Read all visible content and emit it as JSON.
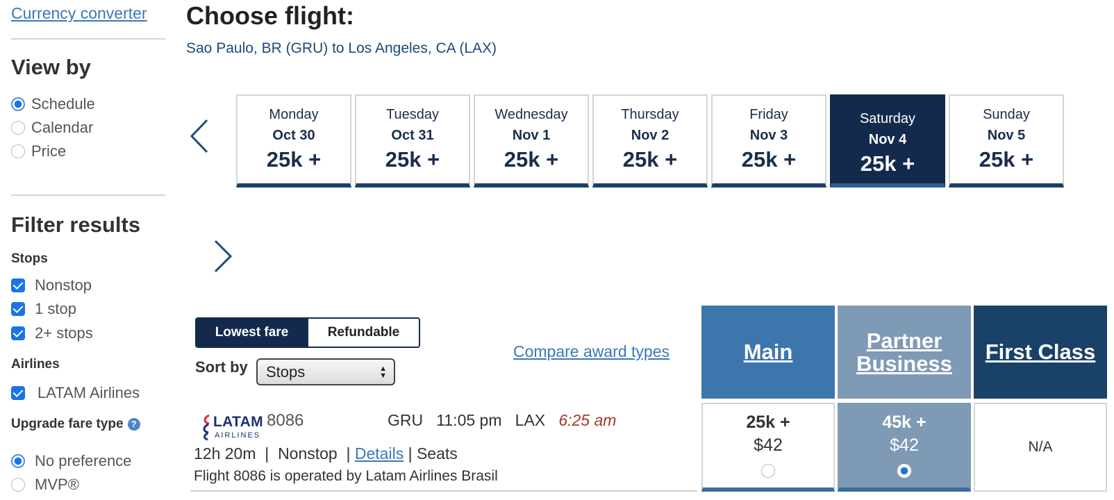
{
  "sidebar": {
    "currency_link": "Currency converter",
    "view_by": {
      "title": "View by",
      "options": [
        {
          "label": "Schedule",
          "selected": true
        },
        {
          "label": "Calendar",
          "selected": false
        },
        {
          "label": "Price",
          "selected": false
        }
      ]
    },
    "filter": {
      "title": "Filter results",
      "stops_title": "Stops",
      "stops": [
        {
          "label": "Nonstop",
          "checked": true
        },
        {
          "label": "1 stop",
          "checked": true
        },
        {
          "label": "2+ stops",
          "checked": true
        }
      ],
      "airlines_title": "Airlines",
      "airlines": [
        {
          "label": "LATAM Airlines",
          "checked": true
        }
      ],
      "upgrade_title": "Upgrade fare type",
      "upgrade_help": "?",
      "upgrade_options": [
        {
          "label": "No preference",
          "selected": true
        },
        {
          "label": "MVP®",
          "selected": false
        }
      ]
    }
  },
  "main": {
    "title": "Choose flight:",
    "route": "Sao Paulo, BR (GRU) to Los Angeles, CA (LAX)",
    "days": [
      {
        "day": "Monday",
        "date": "Oct 30",
        "price": "25k +",
        "selected": false
      },
      {
        "day": "Tuesday",
        "date": "Oct 31",
        "price": "25k +",
        "selected": false
      },
      {
        "day": "Wednesday",
        "date": "Nov 1",
        "price": "25k +",
        "selected": false
      },
      {
        "day": "Thursday",
        "date": "Nov 2",
        "price": "25k +",
        "selected": false
      },
      {
        "day": "Friday",
        "date": "Nov 3",
        "price": "25k +",
        "selected": false
      },
      {
        "day": "Saturday",
        "date": "Nov 4",
        "price": "25k +",
        "selected": true
      },
      {
        "day": "Sunday",
        "date": "Nov 5",
        "price": "25k +",
        "selected": false
      }
    ],
    "fare_toggle": {
      "lowest": "Lowest fare",
      "refundable": "Refundable",
      "active": "lowest"
    },
    "sort": {
      "label": "Sort by",
      "value": "Stops"
    },
    "compare_link": "Compare award types",
    "fare_columns": [
      {
        "label": "Main",
        "color": "#3d75ad"
      },
      {
        "label": "Partner Business",
        "color": "#7f9ab5"
      },
      {
        "label": "First Class",
        "color": "#1a4268"
      }
    ],
    "flight": {
      "airline_logo_word": "LATAM",
      "airline_logo_sub": "AIRLINES",
      "number": "8086",
      "origin": "GRU",
      "depart": "11:05 pm",
      "destination": "LAX",
      "arrive": "6:25 am",
      "duration": "12h 20m",
      "stops": "Nonstop",
      "details_link": "Details",
      "seats_link": "Seats",
      "operated_by": "Flight 8086 is operated by Latam Airlines Brasil",
      "fares": [
        {
          "points": "25k +",
          "usd": "$42",
          "selected": false
        },
        {
          "points": "45k +",
          "usd": "$42",
          "selected": true
        },
        {
          "na": "N/A"
        }
      ]
    }
  }
}
